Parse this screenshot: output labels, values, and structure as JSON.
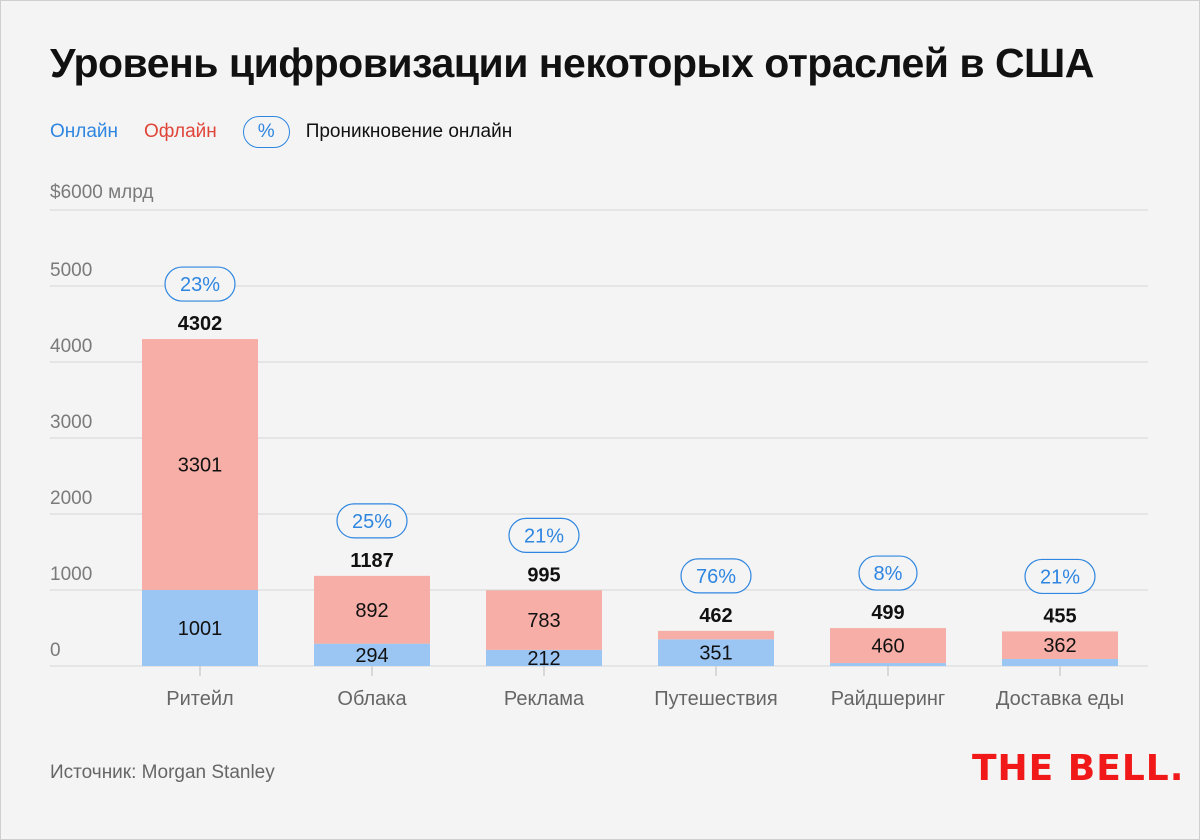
{
  "chart_data": {
    "type": "bar",
    "stacked": true,
    "title": "Уровень цифровизации некоторых отраслей в США",
    "ylabel": "$6000 млрд",
    "ylim": [
      0,
      6000
    ],
    "yticks": [
      0,
      1000,
      2000,
      3000,
      4000,
      5000
    ],
    "ytick_labels": [
      "0",
      "1000",
      "2000",
      "3000",
      "4000",
      "5000"
    ],
    "top_tick_label": "$6000 млрд",
    "categories": [
      "Ритейл",
      "Облака",
      "Реклама",
      "Путешествия",
      "Райдшеринг",
      "Доставка еды"
    ],
    "series": [
      {
        "name": "Онлайн",
        "color": "#9bc6f4",
        "values": [
          1001,
          294,
          212,
          351,
          39,
          93
        ],
        "labels": [
          "1001",
          "294",
          "212",
          "351",
          "",
          ""
        ]
      },
      {
        "name": "Офлайн",
        "color": "#f6aea6",
        "values": [
          3301,
          892,
          783,
          111,
          460,
          362
        ],
        "labels": [
          "3301",
          "892",
          "783",
          "",
          "460",
          "362"
        ]
      }
    ],
    "totals": [
      "4302",
      "1187",
      "995",
      "462",
      "499",
      "455"
    ],
    "online_share": [
      "23%",
      "25%",
      "21%",
      "76%",
      "8%",
      "21%"
    ],
    "legend": {
      "online": "Онлайн",
      "offline": "Офлайн",
      "pill": "%",
      "pill_text": "Проникновение онлайн",
      "placement": "top-left"
    },
    "grid": true
  },
  "source": "Источник: Morgan Stanley",
  "logo": "THE BELL."
}
